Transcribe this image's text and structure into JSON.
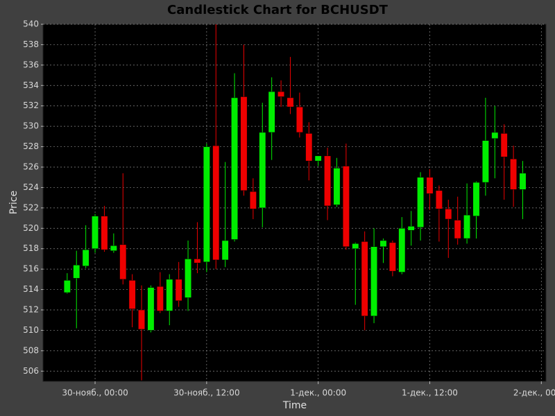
{
  "chart_data": {
    "type": "candlestick",
    "title": "Candlestick Chart for BCHUSDT",
    "xlabel": "Time",
    "ylabel": "Price",
    "x": [
      -3,
      -2,
      -1,
      0,
      1,
      2,
      3,
      4,
      5,
      6,
      7,
      8,
      9,
      10,
      11,
      12,
      13,
      14,
      15,
      16,
      17,
      18,
      19,
      20,
      21,
      22,
      23,
      24,
      25,
      26,
      27,
      28,
      29,
      30,
      31,
      32,
      33,
      34,
      35,
      36,
      37,
      38,
      39,
      40,
      41,
      42,
      43,
      44,
      45,
      46
    ],
    "open": [
      513.7,
      515.1,
      516.3,
      518.0,
      521.2,
      517.8,
      518.4,
      514.9,
      512.0,
      510.0,
      514.3,
      511.9,
      515.0,
      513.2,
      517.0,
      516.7,
      528.1,
      516.9,
      518.9,
      532.9,
      523.6,
      522.0,
      529.4,
      533.4,
      532.8,
      531.9,
      529.3,
      526.6,
      527.1,
      522.3,
      526.1,
      518.0,
      518.7,
      511.4,
      518.2,
      518.6,
      515.7,
      519.8,
      520.1,
      525.0,
      523.7,
      521.9,
      520.8,
      519.0,
      521.2,
      524.5,
      528.8,
      529.3,
      526.8,
      523.8
    ],
    "high": [
      515.6,
      517.8,
      520.3,
      521.4,
      522.2,
      519.5,
      525.4,
      515.5,
      514.4,
      514.4,
      515.7,
      515.5,
      516.7,
      518.8,
      520.6,
      528.3,
      540.0,
      526.5,
      535.2,
      538.0,
      524.9,
      532.3,
      534.8,
      534.5,
      536.8,
      533.3,
      530.4,
      527.1,
      527.9,
      526.9,
      528.3,
      518.6,
      519.7,
      520.0,
      519.0,
      518.8,
      521.1,
      521.7,
      525.5,
      525.8,
      524.2,
      522.8,
      523.1,
      524.4,
      524.6,
      532.8,
      532.0,
      530.2,
      528.1,
      526.6
    ],
    "low": [
      513.6,
      510.2,
      516.1,
      517.6,
      517.7,
      517.6,
      514.5,
      510.3,
      505.1,
      509.8,
      511.7,
      510.5,
      512.3,
      511.9,
      515.6,
      515.7,
      516.0,
      516.2,
      518.7,
      523.2,
      520.9,
      520.1,
      526.7,
      531.9,
      531.2,
      528.9,
      524.7,
      526.1,
      520.8,
      522.1,
      517.9,
      512.5,
      510.0,
      510.7,
      516.6,
      515.3,
      515.5,
      518.3,
      518.8,
      521.8,
      518.7,
      517.1,
      518.4,
      518.5,
      519.0,
      523.2,
      524.9,
      522.8,
      522.1,
      520.9
    ],
    "close": [
      514.9,
      516.4,
      517.9,
      521.2,
      517.9,
      518.3,
      515.0,
      512.1,
      510.1,
      514.2,
      511.9,
      515.0,
      512.9,
      517.0,
      516.6,
      528.0,
      516.9,
      518.8,
      532.8,
      523.7,
      521.9,
      529.4,
      533.4,
      532.9,
      531.9,
      529.4,
      526.6,
      527.1,
      522.2,
      525.9,
      518.2,
      518.5,
      511.4,
      518.2,
      518.8,
      515.8,
      520.0,
      520.2,
      525.0,
      523.4,
      521.9,
      520.9,
      519.0,
      521.3,
      524.5,
      528.6,
      529.4,
      527.0,
      523.8,
      525.4
    ],
    "up_color": "#00ee00",
    "down_color": "#ee0000",
    "xlim": [
      -5.6,
      48.5
    ],
    "ylim": [
      505,
      540
    ],
    "xticks": [
      {
        "value": 0,
        "label": "30-нояб., 00:00"
      },
      {
        "value": 12,
        "label": "30-нояб., 12:00"
      },
      {
        "value": 24,
        "label": "1-дек., 00:00"
      },
      {
        "value": 36,
        "label": "1-дек., 12:00"
      },
      {
        "value": 48,
        "label": "2-дек., 00:00"
      }
    ],
    "yticks": [
      506,
      508,
      510,
      512,
      514,
      516,
      518,
      520,
      522,
      524,
      526,
      528,
      530,
      532,
      534,
      536,
      538,
      540
    ],
    "grid": true
  }
}
